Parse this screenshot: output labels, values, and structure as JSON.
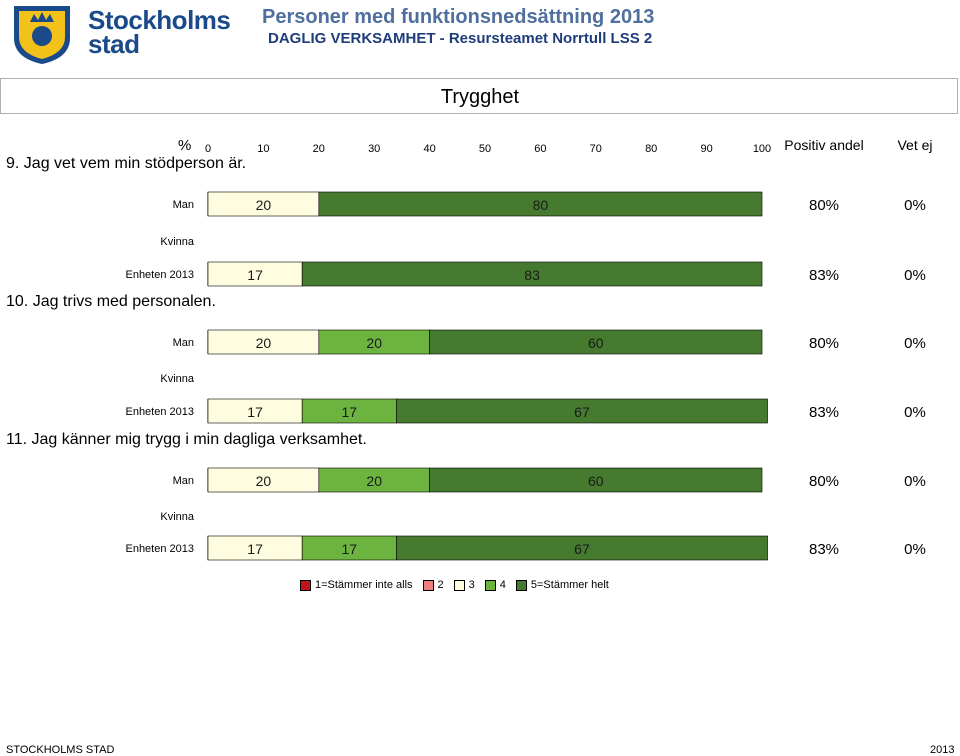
{
  "header": {
    "logo_text_line1": "Stockholms",
    "logo_text_line2": "stad",
    "title": "Personer med funktionsnedsättning 2013",
    "subtitle": "DAGLIG VERKSAMHET - Resursteamet Norrtull LSS 2"
  },
  "section_title": "Trygghet",
  "colors": {
    "level1": "#c0141c",
    "level2": "#f08080",
    "level3": "#fffde0",
    "level4": "#6db33f",
    "level5": "#467a2f",
    "logo_blue": "#1a4a8a",
    "logo_gold": "#f2c21a"
  },
  "chart_data": {
    "type": "bar",
    "orientation": "horizontal-stacked-percent",
    "axis_unit_label": "%",
    "x_ticks": [
      0,
      10,
      20,
      30,
      40,
      50,
      60,
      70,
      80,
      90,
      100
    ],
    "xlim": [
      0,
      100
    ],
    "column_headers": [
      "Positiv andel",
      "Vet ej"
    ],
    "categories": [
      "1=Stämmer inte alls",
      "2",
      "3",
      "4",
      "5=Stämmer helt"
    ],
    "questions": [
      {
        "label": "9. Jag vet vem min stödperson är.",
        "rows": [
          {
            "label": "Man",
            "values": [
              0,
              0,
              20,
              0,
              80
            ],
            "positiv": "80%",
            "vet_ej": "0%"
          },
          {
            "label": "Kvinna",
            "values": null,
            "positiv": "",
            "vet_ej": ""
          },
          {
            "label": "Enheten 2013",
            "values": [
              0,
              0,
              17,
              0,
              83
            ],
            "positiv": "83%",
            "vet_ej": "0%"
          }
        ]
      },
      {
        "label": "10. Jag trivs med personalen.",
        "rows": [
          {
            "label": "Man",
            "values": [
              0,
              0,
              20,
              20,
              60
            ],
            "positiv": "80%",
            "vet_ej": "0%"
          },
          {
            "label": "Kvinna",
            "values": null,
            "positiv": "",
            "vet_ej": ""
          },
          {
            "label": "Enheten 2013",
            "values": [
              0,
              0,
              17,
              17,
              67
            ],
            "positiv": "83%",
            "vet_ej": "0%"
          }
        ]
      },
      {
        "label": "11. Jag känner mig trygg i min dagliga verksamhet.",
        "rows": [
          {
            "label": "Man",
            "values": [
              0,
              0,
              20,
              20,
              60
            ],
            "positiv": "80%",
            "vet_ej": "0%"
          },
          {
            "label": "Kvinna",
            "values": null,
            "positiv": "",
            "vet_ej": ""
          },
          {
            "label": "Enheten 2013",
            "values": [
              0,
              0,
              17,
              17,
              67
            ],
            "positiv": "83%",
            "vet_ej": "0%"
          }
        ]
      }
    ]
  },
  "footer": {
    "left": "STOCKHOLMS STAD",
    "right": "2013"
  }
}
